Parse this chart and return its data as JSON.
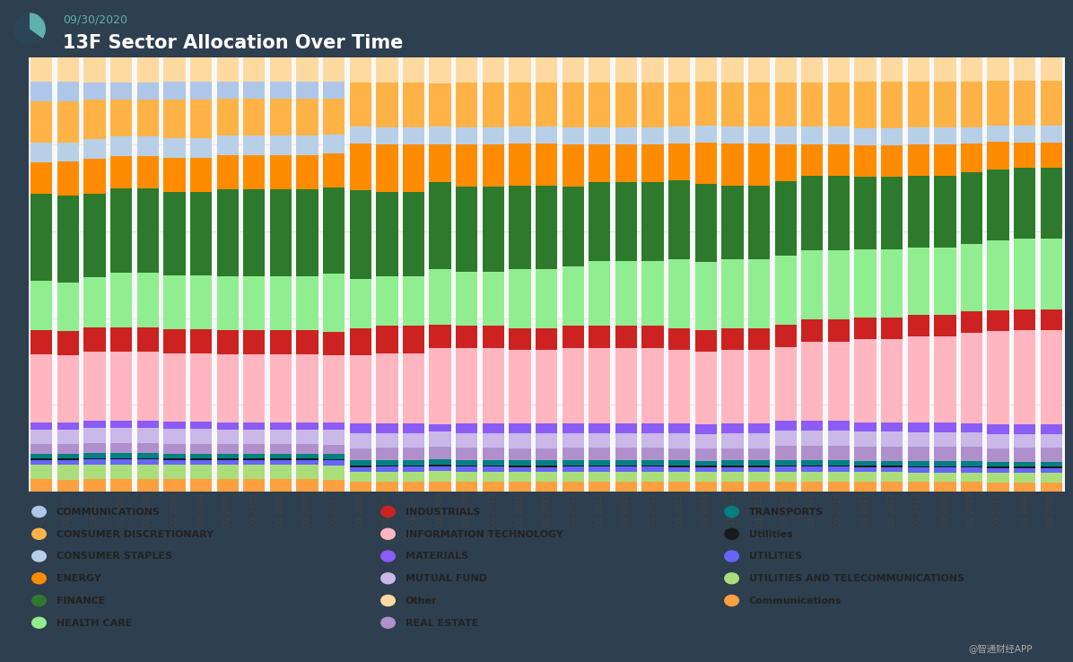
{
  "title": "13F Sector Allocation Over Time",
  "subtitle": "09/30/2020",
  "background_color": "#2e3f4f",
  "chart_bg": "#ffffff",
  "quarters": [
    "Q3 20...",
    "Q1 2002",
    "Q3 2002",
    "Q1 2003",
    "Q3 2003",
    "Q1 2004",
    "Q3 2004",
    "Q1 2005",
    "Q3 2005",
    "Q1 2006",
    "Q3 2006",
    "Q1 2007",
    "Q3 2007",
    "Q1 2008",
    "Q3 2008",
    "Q1 2009",
    "Q3 2009",
    "Q1 2010",
    "Q3 2010",
    "Q1 2011",
    "Q3 2011",
    "Q1 2012",
    "Q3 2012",
    "Q1 2013",
    "Q3 2013",
    "Q1 2014",
    "Q3 2014",
    "Q1 2015",
    "Q3 2015",
    "Q1 2016",
    "Q3 2016",
    "Q1 2017",
    "Q3 2017",
    "Q1 2018",
    "Q3 2018",
    "Q1 2019",
    "Q3 2019",
    "Q1 2020",
    "Q3 2020"
  ],
  "colors": {
    "COMMUNICATIONS": "#aec6e8",
    "CONSUMER DISCRETIONARY": "#ffb347",
    "CONSUMER STAPLES": "#b8cfe8",
    "ENERGY": "#ff8c00",
    "FINANCE": "#2d7a2d",
    "HEALTH CARE": "#90ee90",
    "INDUSTRIALS": "#cc2222",
    "INFORMATION TECHNOLOGY": "#ffb6c1",
    "MATERIALS": "#8b5cf6",
    "MUTUAL FUND": "#c9b8e8",
    "Other": "#ffdaa0",
    "REAL ESTATE": "#b090cc",
    "TRANSPORTS": "#008080",
    "Utilities": "#1a1a1a",
    "UTILITIES": "#6666ff",
    "UTILITIES AND TELECOMMUNICATIONS": "#aade7a",
    "Communications": "#ffa040"
  },
  "stack_order": [
    "Communications",
    "UTILITIES AND TELECOMMUNICATIONS",
    "UTILITIES",
    "Utilities",
    "TRANSPORTS",
    "REAL ESTATE",
    "MUTUAL FUND",
    "MATERIALS",
    "INFORMATION TECHNOLOGY",
    "INDUSTRIALS",
    "HEALTH CARE",
    "FINANCE",
    "ENERGY",
    "CONSUMER STAPLES",
    "CONSUMER DISCRETIONARY",
    "COMMUNICATIONS",
    "Other"
  ],
  "legend_order": [
    [
      "COMMUNICATIONS",
      "#aec6e8"
    ],
    [
      "CONSUMER DISCRETIONARY",
      "#ffb347"
    ],
    [
      "CONSUMER STAPLES",
      "#b8cfe8"
    ],
    [
      "ENERGY",
      "#ff8c00"
    ],
    [
      "FINANCE",
      "#2d7a2d"
    ],
    [
      "HEALTH CARE",
      "#90ee90"
    ],
    [
      "INDUSTRIALS",
      "#cc2222"
    ],
    [
      "INFORMATION TECHNOLOGY",
      "#ffb6c1"
    ],
    [
      "MATERIALS",
      "#8b5cf6"
    ],
    [
      "MUTUAL FUND",
      "#c9b8e8"
    ],
    [
      "Other",
      "#ffdaa0"
    ],
    [
      "REAL ESTATE",
      "#b090cc"
    ],
    [
      "TRANSPORTS",
      "#008080"
    ],
    [
      "Utilities",
      "#1a1a1a"
    ],
    [
      "UTILITIES",
      "#6666ff"
    ],
    [
      "UTILITIES AND TELECOMMUNICATIONS",
      "#aade7a"
    ],
    [
      "Communications",
      "#ffa040"
    ]
  ],
  "data": {
    "COMMUNICATIONS": [
      4.0,
      4.0,
      3.5,
      3.5,
      3.5,
      3.5,
      3.5,
      3.5,
      3.5,
      3.5,
      3.5,
      3.5,
      0.0,
      0.0,
      0.0,
      0.0,
      0.0,
      0.0,
      0.0,
      0.0,
      0.0,
      0.0,
      0.0,
      0.0,
      0.0,
      0.0,
      0.0,
      0.0,
      0.0,
      0.0,
      0.0,
      0.0,
      0.0,
      0.0,
      0.0,
      0.0,
      0.0,
      0.0,
      0.0
    ],
    "CONSUMER DISCRETIONARY": [
      8.5,
      8.5,
      8.0,
      7.5,
      7.5,
      8.0,
      8.0,
      7.5,
      7.5,
      7.5,
      7.5,
      7.5,
      9.0,
      9.0,
      9.0,
      8.5,
      9.0,
      9.0,
      9.0,
      9.0,
      9.0,
      9.0,
      9.0,
      9.0,
      9.0,
      9.0,
      9.0,
      9.0,
      9.0,
      9.0,
      9.0,
      9.5,
      9.5,
      9.5,
      9.5,
      9.5,
      9.5,
      9.5,
      9.5
    ],
    "CONSUMER STAPLES": [
      4.0,
      4.0,
      4.0,
      4.0,
      4.0,
      4.0,
      4.0,
      4.0,
      4.0,
      4.0,
      4.0,
      4.0,
      3.5,
      3.5,
      3.5,
      3.5,
      3.5,
      3.5,
      3.5,
      3.5,
      3.5,
      3.5,
      3.5,
      3.5,
      3.5,
      3.5,
      3.5,
      3.5,
      3.5,
      3.5,
      3.5,
      3.5,
      3.5,
      3.5,
      3.5,
      3.5,
      3.5,
      3.5,
      3.5
    ],
    "ENERGY": [
      6.5,
      7.0,
      7.0,
      6.5,
      6.5,
      7.0,
      7.0,
      7.0,
      7.0,
      7.0,
      7.0,
      7.0,
      9.5,
      9.5,
      9.5,
      7.5,
      8.5,
      8.5,
      8.5,
      8.5,
      8.5,
      7.5,
      7.5,
      7.5,
      7.5,
      8.5,
      8.5,
      8.5,
      7.5,
      6.5,
      6.5,
      6.5,
      6.5,
      6.5,
      6.5,
      6.0,
      6.0,
      5.5,
      5.5
    ],
    "FINANCE": [
      18,
      18,
      17,
      17,
      17,
      17,
      17,
      18,
      18,
      18,
      18,
      18,
      18,
      17,
      17,
      17,
      17,
      17,
      17,
      17,
      16,
      16,
      16,
      16,
      16,
      16,
      15,
      15,
      15,
      15,
      15,
      15,
      15,
      15,
      15,
      15,
      15,
      15,
      15
    ],
    "HEALTH CARE": [
      10,
      10,
      10,
      11,
      11,
      11,
      11,
      11,
      11,
      11,
      11,
      12,
      10,
      10,
      10,
      11,
      11,
      11,
      12,
      12,
      12,
      13,
      13,
      13,
      14,
      14,
      14,
      14,
      14,
      14,
      14,
      14,
      14,
      14,
      14,
      14,
      15,
      15,
      15
    ],
    "INDUSTRIALS": [
      5.0,
      5.0,
      5.0,
      5.0,
      5.0,
      5.0,
      5.0,
      5.0,
      5.0,
      5.0,
      5.0,
      5.0,
      5.5,
      5.5,
      5.5,
      4.5,
      4.5,
      4.5,
      4.5,
      4.5,
      4.5,
      4.5,
      4.5,
      4.5,
      4.5,
      4.5,
      4.5,
      4.5,
      4.5,
      4.5,
      4.5,
      4.5,
      4.5,
      4.5,
      4.5,
      4.5,
      4.5,
      4.5,
      4.5
    ],
    "INFORMATION TECHNOLOGY": [
      14,
      14,
      14,
      14,
      14,
      14,
      14,
      14,
      14,
      14,
      14,
      14,
      14,
      14,
      14,
      15,
      15,
      15,
      15,
      15,
      15,
      15,
      15,
      15,
      15,
      15,
      15,
      15,
      15,
      16,
      16,
      17,
      17,
      18,
      18,
      19,
      20,
      20,
      20
    ],
    "MATERIALS": [
      1.5,
      1.5,
      1.5,
      1.5,
      1.5,
      1.5,
      1.5,
      1.5,
      1.5,
      1.5,
      1.5,
      1.5,
      2.0,
      2.0,
      2.0,
      1.5,
      2.0,
      2.0,
      2.0,
      2.0,
      2.0,
      2.0,
      2.0,
      2.0,
      2.0,
      2.0,
      2.0,
      2.0,
      2.0,
      2.0,
      2.0,
      2.0,
      2.0,
      2.0,
      2.0,
      2.0,
      2.0,
      2.0,
      2.0
    ],
    "MUTUAL FUND": [
      3.0,
      3.0,
      3.0,
      3.0,
      3.0,
      3.0,
      3.0,
      3.0,
      3.0,
      3.0,
      3.0,
      3.0,
      3.0,
      3.0,
      3.0,
      3.0,
      3.0,
      3.0,
      3.0,
      3.0,
      3.0,
      3.0,
      3.0,
      3.0,
      3.0,
      3.0,
      3.0,
      3.0,
      3.0,
      3.0,
      3.0,
      3.0,
      3.0,
      3.0,
      3.0,
      3.0,
      3.0,
      3.0,
      3.0
    ],
    "Other": [
      5.0,
      5.0,
      5.0,
      5.0,
      5.0,
      5.0,
      5.0,
      5.0,
      5.0,
      5.0,
      5.0,
      5.0,
      5.0,
      5.0,
      5.0,
      5.0,
      5.0,
      5.0,
      5.0,
      5.0,
      5.0,
      5.0,
      5.0,
      5.0,
      5.0,
      5.0,
      5.0,
      5.0,
      5.0,
      5.0,
      5.0,
      5.0,
      5.0,
      5.0,
      5.0,
      5.0,
      5.0,
      5.0,
      5.0
    ],
    "REAL ESTATE": [
      2.0,
      2.0,
      2.0,
      2.0,
      2.0,
      2.0,
      2.0,
      2.0,
      2.0,
      2.0,
      2.0,
      2.0,
      2.5,
      2.5,
      2.5,
      2.5,
      2.5,
      2.5,
      2.5,
      2.5,
      2.5,
      2.5,
      2.5,
      2.5,
      2.5,
      2.5,
      2.5,
      2.5,
      3.0,
      3.0,
      3.0,
      3.0,
      3.0,
      3.0,
      3.0,
      3.0,
      3.0,
      3.0,
      3.0
    ],
    "TRANSPORTS": [
      1.0,
      1.0,
      1.0,
      1.0,
      1.0,
      1.0,
      1.0,
      1.0,
      1.0,
      1.0,
      1.0,
      1.0,
      1.0,
      1.0,
      1.0,
      1.0,
      1.0,
      1.0,
      1.0,
      1.0,
      1.0,
      1.0,
      1.0,
      1.0,
      1.0,
      1.0,
      1.0,
      1.0,
      1.0,
      1.0,
      1.0,
      1.0,
      1.0,
      1.0,
      1.0,
      1.0,
      1.0,
      1.0,
      1.0
    ],
    "Utilities": [
      0.3,
      0.3,
      0.3,
      0.3,
      0.3,
      0.3,
      0.3,
      0.3,
      0.3,
      0.3,
      0.3,
      0.3,
      0.3,
      0.3,
      0.3,
      0.3,
      0.3,
      0.3,
      0.3,
      0.3,
      0.3,
      0.3,
      0.3,
      0.3,
      0.3,
      0.3,
      0.3,
      0.3,
      0.3,
      0.3,
      0.3,
      0.3,
      0.3,
      0.3,
      0.3,
      0.3,
      0.3,
      0.3,
      0.3
    ],
    "UTILITIES": [
      1.0,
      1.0,
      1.0,
      1.0,
      1.0,
      1.0,
      1.0,
      1.0,
      1.0,
      1.0,
      1.0,
      1.0,
      1.0,
      1.0,
      1.0,
      1.0,
      1.0,
      1.0,
      1.0,
      1.0,
      1.0,
      1.0,
      1.0,
      1.0,
      1.0,
      1.0,
      1.0,
      1.0,
      1.0,
      1.0,
      1.0,
      1.0,
      1.0,
      1.0,
      1.0,
      1.0,
      1.0,
      1.0,
      1.0
    ],
    "UTILITIES AND TELECOMMUNICATIONS": [
      3.0,
      3.0,
      3.0,
      3.0,
      3.0,
      3.0,
      3.0,
      3.0,
      3.0,
      3.0,
      3.0,
      3.0,
      2.0,
      2.0,
      2.0,
      2.0,
      2.0,
      2.0,
      2.0,
      2.0,
      2.0,
      2.0,
      2.0,
      2.0,
      2.0,
      2.0,
      2.0,
      2.0,
      2.0,
      2.0,
      2.0,
      2.0,
      2.0,
      2.0,
      2.0,
      2.0,
      2.0,
      2.0,
      2.0
    ],
    "Communications": [
      2.5,
      2.5,
      2.5,
      2.5,
      2.5,
      2.5,
      2.5,
      2.5,
      2.5,
      2.5,
      2.5,
      2.5,
      2.0,
      2.0,
      2.0,
      2.0,
      2.0,
      2.0,
      2.0,
      2.0,
      2.0,
      2.0,
      2.0,
      2.0,
      2.0,
      2.0,
      2.0,
      2.0,
      2.0,
      2.0,
      2.0,
      2.0,
      2.0,
      2.0,
      2.0,
      2.0,
      2.0,
      2.0,
      2.0
    ]
  }
}
